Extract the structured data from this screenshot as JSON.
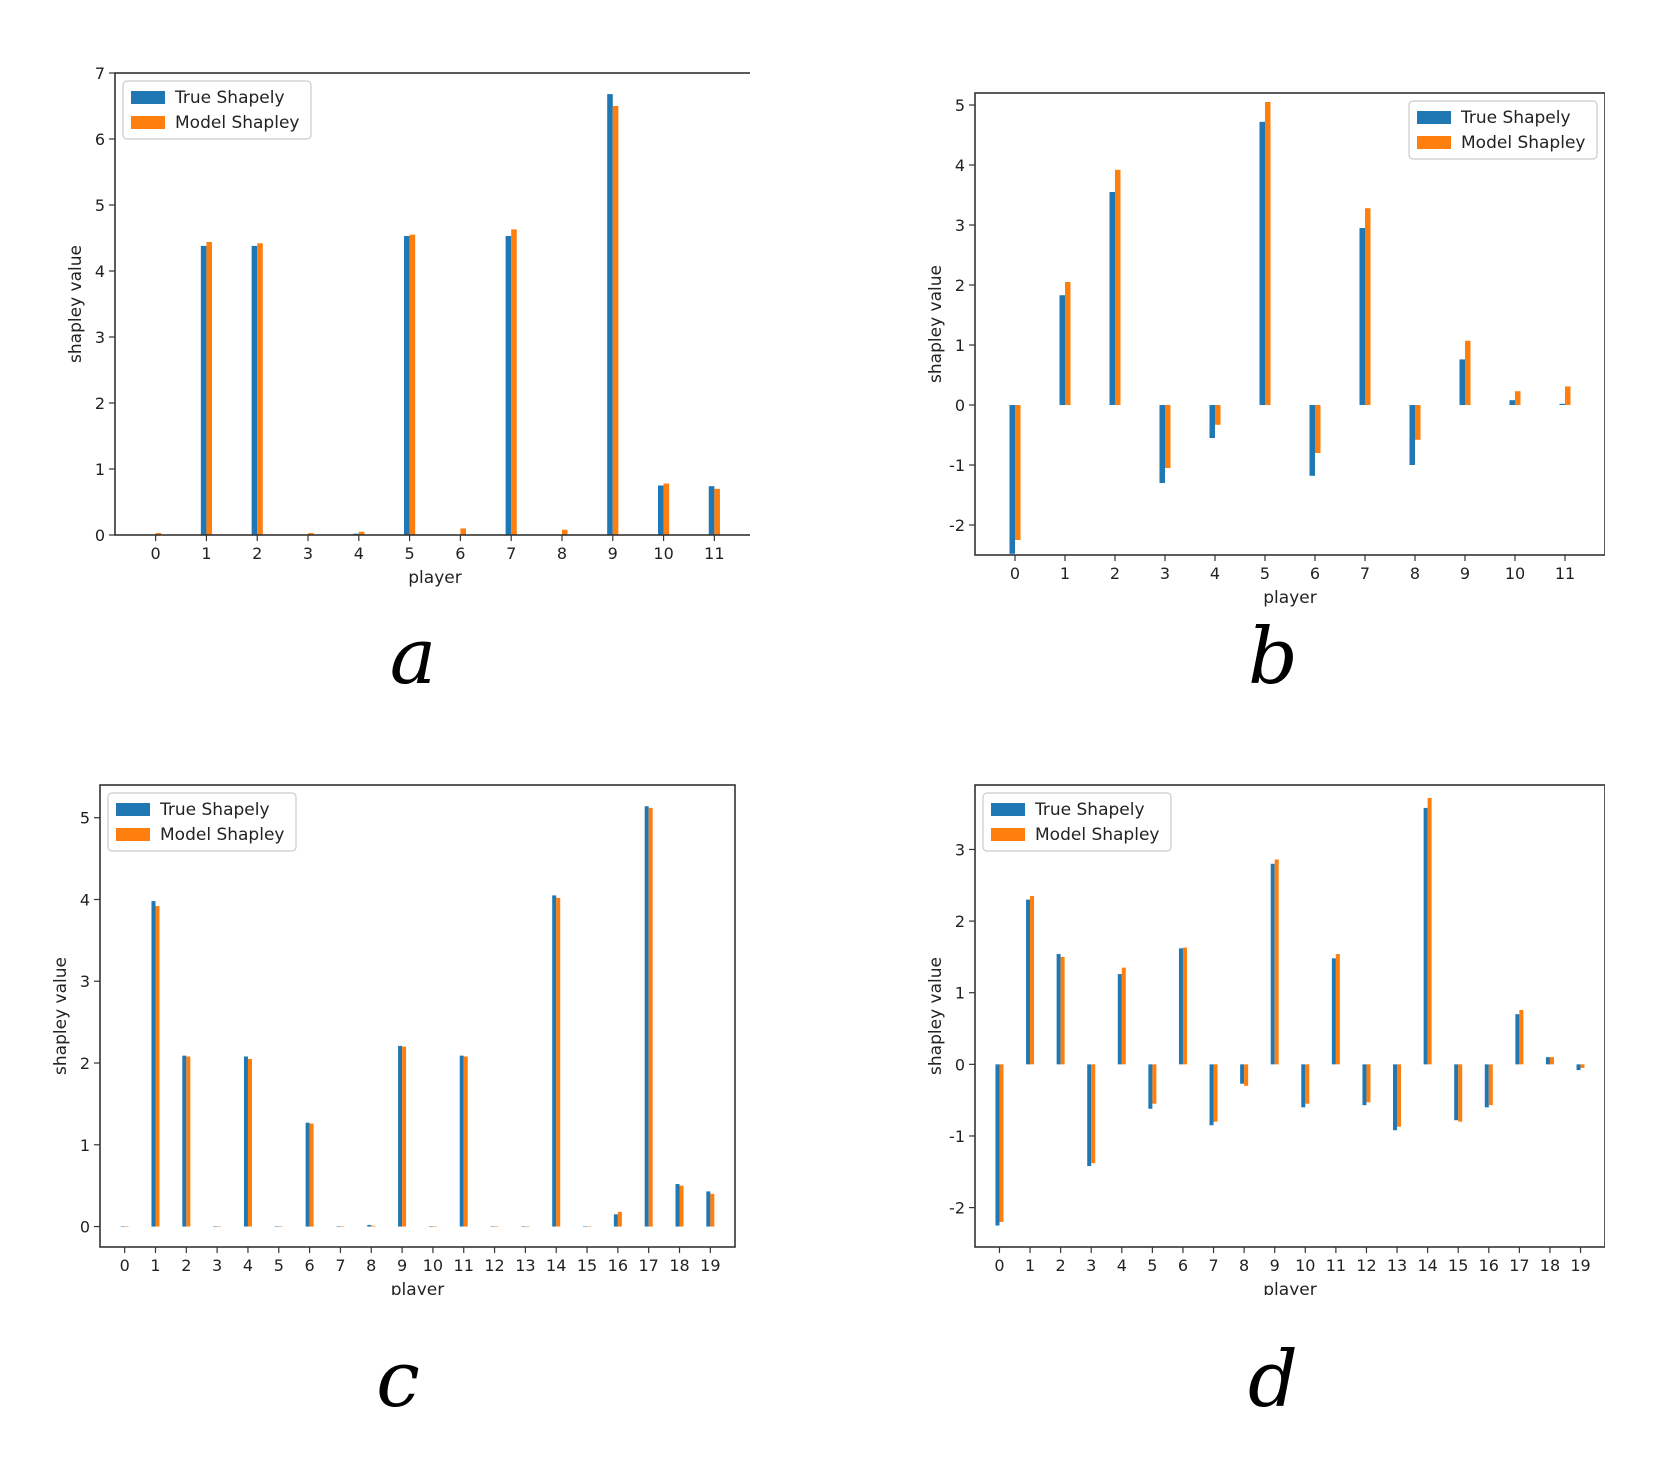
{
  "colors": {
    "true": "#1f77b4",
    "model": "#ff7f0e"
  },
  "captions": [
    "a",
    "b",
    "c",
    "d"
  ],
  "chart_data": [
    {
      "type": "bar",
      "xlabel": "player",
      "ylabel": "shapley value",
      "ylim": [
        0,
        7
      ],
      "yticks": [
        0,
        1,
        2,
        3,
        4,
        5,
        6,
        7
      ],
      "categories": [
        "0",
        "1",
        "2",
        "3",
        "4",
        "5",
        "6",
        "7",
        "8",
        "9",
        "10",
        "11"
      ],
      "legend": "top-left",
      "series": [
        {
          "name": "True Shapely",
          "values": [
            0,
            4.38,
            4.38,
            0,
            0.02,
            4.53,
            0,
            4.53,
            0,
            6.68,
            0.75,
            0.74
          ]
        },
        {
          "name": "Model Shapley",
          "values": [
            0.03,
            4.44,
            4.42,
            0.03,
            0.05,
            4.55,
            0.1,
            4.63,
            0.08,
            6.5,
            0.78,
            0.7
          ]
        }
      ]
    },
    {
      "type": "bar",
      "xlabel": "player",
      "ylabel": "shapley value",
      "ylim": [
        -2.5,
        5.2
      ],
      "yticks": [
        -2,
        -1,
        0,
        1,
        2,
        3,
        4,
        5
      ],
      "categories": [
        "0",
        "1",
        "2",
        "3",
        "4",
        "5",
        "6",
        "7",
        "8",
        "9",
        "10",
        "11"
      ],
      "legend": "top-right",
      "series": [
        {
          "name": "True Shapely",
          "values": [
            -2.48,
            1.83,
            3.55,
            -1.3,
            -0.55,
            4.72,
            -1.18,
            2.95,
            -1.0,
            0.76,
            0.08,
            0.02
          ]
        },
        {
          "name": "Model Shapley",
          "values": [
            -2.25,
            2.05,
            3.92,
            -1.05,
            -0.33,
            5.05,
            -0.8,
            3.28,
            -0.58,
            1.07,
            0.23,
            0.31
          ]
        }
      ]
    },
    {
      "type": "bar",
      "xlabel": "player",
      "ylabel": "shapley value",
      "ylim": [
        -0.25,
        5.4
      ],
      "yticks": [
        0,
        1,
        2,
        3,
        4,
        5
      ],
      "categories": [
        "0",
        "1",
        "2",
        "3",
        "4",
        "5",
        "6",
        "7",
        "8",
        "9",
        "10",
        "11",
        "12",
        "13",
        "14",
        "15",
        "16",
        "17",
        "18",
        "19"
      ],
      "legend": "top-left",
      "series": [
        {
          "name": "True Shapely",
          "values": [
            0,
            3.98,
            2.09,
            0,
            2.08,
            0,
            1.27,
            0,
            0.02,
            2.21,
            0,
            2.09,
            0,
            0,
            4.05,
            0,
            0.15,
            5.14,
            0.52,
            0.43
          ]
        },
        {
          "name": "Model Shapley",
          "values": [
            0,
            3.92,
            2.08,
            0,
            2.05,
            0,
            1.26,
            0,
            0.01,
            2.2,
            0,
            2.08,
            0,
            0,
            4.02,
            0,
            0.18,
            5.12,
            0.5,
            0.4
          ]
        }
      ]
    },
    {
      "type": "bar",
      "xlabel": "player",
      "ylabel": "shapley value",
      "ylim": [
        -2.55,
        3.9
      ],
      "yticks": [
        -2,
        -1,
        0,
        1,
        2,
        3
      ],
      "categories": [
        "0",
        "1",
        "2",
        "3",
        "4",
        "5",
        "6",
        "7",
        "8",
        "9",
        "10",
        "11",
        "12",
        "13",
        "14",
        "15",
        "16",
        "17",
        "18",
        "19"
      ],
      "legend": "top-left",
      "series": [
        {
          "name": "True Shapely",
          "values": [
            -2.25,
            2.3,
            1.54,
            -1.42,
            1.26,
            -0.62,
            1.62,
            -0.85,
            -0.27,
            2.8,
            -0.6,
            1.48,
            -0.57,
            -0.92,
            3.58,
            -0.78,
            -0.6,
            0.7,
            0.1,
            -0.08
          ]
        },
        {
          "name": "Model Shapley",
          "values": [
            -2.2,
            2.35,
            1.5,
            -1.38,
            1.35,
            -0.55,
            1.63,
            -0.8,
            -0.3,
            2.86,
            -0.55,
            1.54,
            -0.53,
            -0.87,
            3.72,
            -0.8,
            -0.57,
            0.76,
            0.1,
            -0.05
          ]
        }
      ]
    }
  ]
}
